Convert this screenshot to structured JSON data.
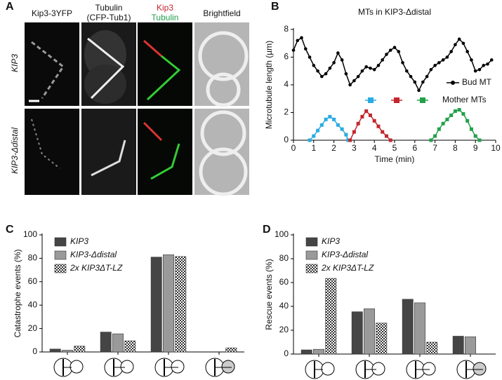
{
  "panel_labels": [
    "A",
    "B",
    "C",
    "D"
  ],
  "microscopy": {
    "columns": [
      [
        "Kip3-3YFP"
      ],
      [
        "Tubulin",
        "(CFP-Tub1)"
      ],
      [
        "Kip3",
        "Tubulin"
      ],
      [
        "Brightfield"
      ]
    ],
    "rows": [
      "KIP3",
      "KIP3-Δdistal"
    ]
  },
  "chart_data": [
    {
      "type": "line",
      "title": "MTs in KIP3-Δdistal",
      "x_label": "Time (min)",
      "y_label": "Microtubule length (µm)",
      "xlim": [
        0,
        10
      ],
      "xticks": [
        0,
        1,
        2,
        3,
        4,
        5,
        6,
        7,
        8,
        9,
        10
      ],
      "ylim": [
        0,
        8
      ],
      "yticks": [
        0,
        2,
        4,
        6,
        8
      ],
      "series": [
        {
          "name": "Bud MT",
          "color": "#000000",
          "marker": "circle",
          "x": [
            0,
            0.2,
            0.4,
            0.6,
            0.8,
            1.0,
            1.2,
            1.4,
            1.6,
            1.8,
            2.0,
            2.2,
            2.4,
            2.6,
            2.8,
            3.0,
            3.2,
            3.4,
            3.6,
            3.8,
            4.0,
            4.2,
            4.4,
            4.6,
            4.8,
            5.0,
            5.2,
            5.4,
            5.6,
            5.8,
            6.0,
            6.2,
            6.4,
            6.6,
            6.8,
            7.0,
            7.2,
            7.4,
            7.6,
            7.8,
            8.0,
            8.2,
            8.4,
            8.6,
            8.8,
            9.0,
            9.2,
            9.4,
            9.6,
            9.8
          ],
          "values": [
            6.5,
            7.2,
            7.4,
            6.6,
            6.0,
            5.4,
            5.0,
            4.6,
            4.8,
            5.2,
            5.6,
            6.3,
            5.8,
            4.8,
            4.0,
            4.3,
            4.6,
            5.0,
            5.3,
            5.2,
            5.1,
            5.4,
            5.8,
            6.2,
            6.5,
            6.7,
            6.4,
            5.6,
            5.0,
            4.6,
            4.2,
            3.6,
            4.2,
            4.6,
            5.1,
            5.4,
            5.6,
            5.8,
            6.0,
            6.4,
            6.9,
            7.3,
            7.0,
            6.4,
            5.8,
            5.0,
            5.1,
            5.4,
            5.5,
            5.8
          ]
        },
        {
          "name": "Mother MTs",
          "colors": [
            "#29abe2",
            "#c1272d",
            "#22a04b"
          ],
          "marker": "square",
          "x": [
            0.8,
            1.0,
            1.2,
            1.4,
            1.6,
            1.8,
            2.0,
            2.2,
            2.4,
            2.6,
            2.7,
            null,
            2.8,
            3.0,
            3.2,
            3.4,
            3.6,
            3.8,
            4.0,
            4.2,
            4.4,
            4.6,
            4.8,
            null,
            6.8,
            7.0,
            7.2,
            7.4,
            7.6,
            7.8,
            8.0,
            8.2,
            8.4,
            8.6,
            8.8,
            9.0,
            9.2
          ],
          "values": [
            0,
            0.3,
            0.7,
            1.1,
            1.5,
            1.7,
            1.5,
            1.1,
            0.8,
            0.4,
            0,
            null,
            0,
            0.6,
            1.2,
            1.7,
            2.1,
            1.8,
            1.4,
            1.0,
            0.6,
            0.3,
            0,
            null,
            0,
            0.3,
            0.8,
            1.2,
            1.5,
            1.8,
            2.1,
            2.2,
            1.9,
            1.4,
            0.8,
            0.3,
            0
          ]
        }
      ]
    },
    {
      "type": "bar",
      "y_label": "Catastrophe events (%)",
      "categories": [
        null,
        null,
        null,
        null
      ],
      "ylim": [
        0,
        100
      ],
      "yticks": [
        0,
        20,
        40,
        60,
        80,
        100
      ],
      "series": [
        {
          "name": "KIP3",
          "color": "#454545",
          "values": [
            2.5,
            17,
            81,
            0
          ]
        },
        {
          "name": "KIP3-Δdistal",
          "color": "#9a9a9a",
          "values": [
            1.5,
            15.5,
            83,
            0
          ]
        },
        {
          "name": "2x KIP3ΔT-LZ",
          "color": "#555555",
          "pattern": "checker",
          "values": [
            5,
            9.5,
            81.5,
            3.5
          ]
        }
      ]
    },
    {
      "type": "bar",
      "y_label": "Rescue events (%)",
      "categories": [
        null,
        null,
        null,
        null
      ],
      "ylim": [
        0,
        100
      ],
      "yticks": [
        0,
        20,
        40,
        60,
        80,
        100
      ],
      "series": [
        {
          "name": "KIP3",
          "color": "#454545",
          "values": [
            3.5,
            35.5,
            46,
            15
          ]
        },
        {
          "name": "KIP3-Δdistal",
          "color": "#9a9a9a",
          "values": [
            4,
            38,
            43,
            14.5
          ]
        },
        {
          "name": "2x KIP3ΔT-LZ",
          "color": "#555555",
          "pattern": "checker",
          "values": [
            63.5,
            26,
            10,
            0
          ]
        }
      ]
    }
  ]
}
